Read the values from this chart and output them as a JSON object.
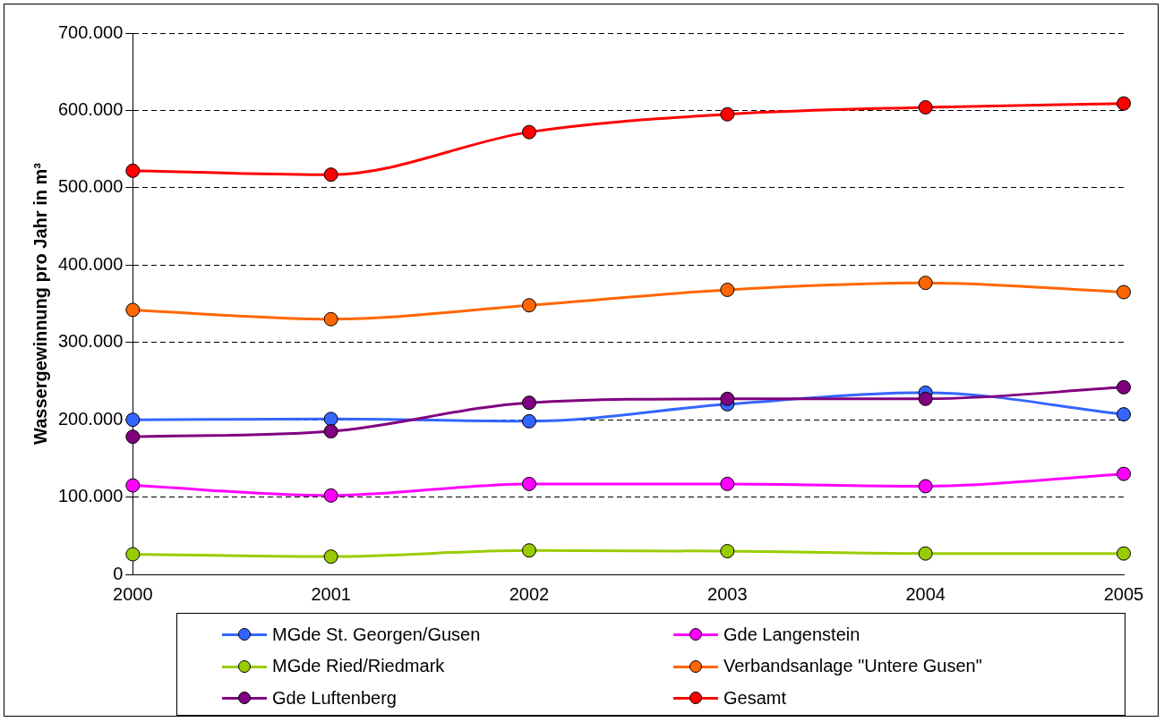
{
  "chart_data": {
    "type": "line",
    "ylabel": "Wassergewinnung pro Jahr in m³",
    "categories": [
      "2000",
      "2001",
      "2002",
      "2003",
      "2004",
      "2005"
    ],
    "series": [
      {
        "name": "MGde St. Georgen/Gusen",
        "color": "#3366ff",
        "values": [
          200000,
          201000,
          198000,
          220000,
          235000,
          207000
        ]
      },
      {
        "name": "Gde Langenstein",
        "color": "#ff00ff",
        "values": [
          115000,
          102000,
          117000,
          117000,
          114000,
          130000
        ]
      },
      {
        "name": "MGde Ried/Riedmark",
        "color": "#99cc00",
        "values": [
          26000,
          23000,
          31000,
          30000,
          27000,
          27000
        ]
      },
      {
        "name": "Verbandsanlage \"Untere Gusen\"",
        "color": "#ff6600",
        "values": [
          342000,
          330000,
          348000,
          368000,
          377000,
          365000
        ]
      },
      {
        "name": "Gde Luftenberg",
        "color": "#800080",
        "values": [
          178000,
          185000,
          222000,
          227000,
          227000,
          242000
        ]
      },
      {
        "name": "Gesamt",
        "color": "#ff0000",
        "values": [
          522000,
          517000,
          572000,
          595000,
          604000,
          609000
        ]
      }
    ],
    "ylim": [
      0,
      700000
    ],
    "yticks": [
      {
        "value": 0,
        "label": "0"
      },
      {
        "value": 100000,
        "label": "100.000"
      },
      {
        "value": 200000,
        "label": "200.000"
      },
      {
        "value": 300000,
        "label": "300.000"
      },
      {
        "value": 400000,
        "label": "400.000"
      },
      {
        "value": 500000,
        "label": "500.000"
      },
      {
        "value": 600000,
        "label": "600.000"
      },
      {
        "value": 700000,
        "label": "700.000"
      }
    ],
    "grid": "y",
    "legend": "bottom",
    "marker": "circle",
    "line_style": "solid"
  }
}
